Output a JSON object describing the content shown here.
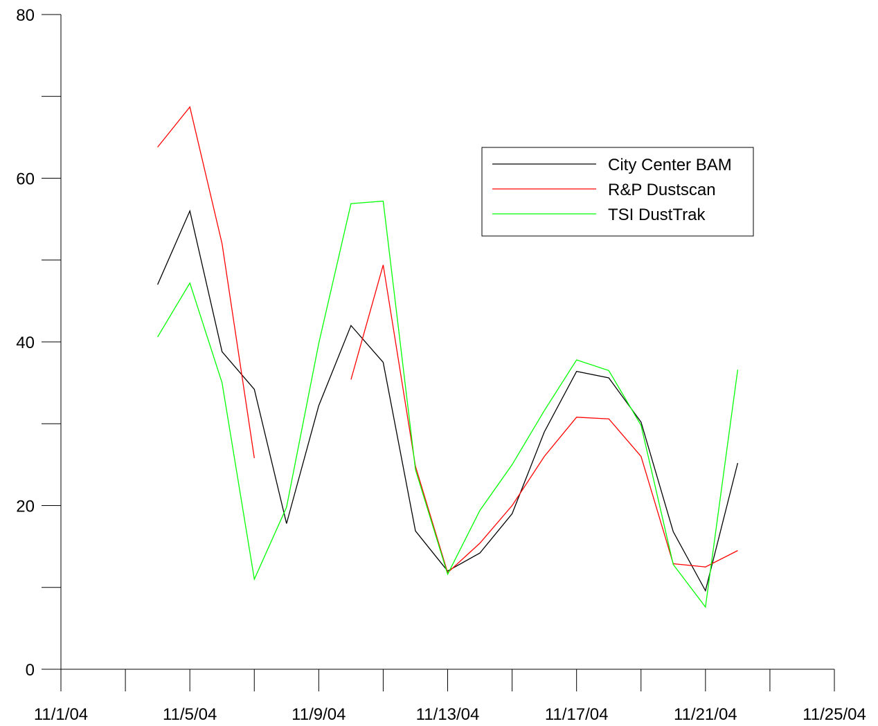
{
  "chart_data": {
    "type": "line",
    "title": "",
    "xlabel": "",
    "ylabel": "",
    "x_ticks": [
      "11/1/04",
      "11/5/04",
      "11/9/04",
      "11/13/04",
      "11/17/04",
      "11/21/04",
      "11/25/04"
    ],
    "x_range": [
      "2004-11-01",
      "2004-11-25"
    ],
    "y_ticks": [
      0,
      20,
      40,
      60,
      80
    ],
    "ylim": [
      0,
      80
    ],
    "grid": false,
    "legend_position": "upper-right",
    "series": [
      {
        "name": "City Center BAM",
        "color": "#000000",
        "points": [
          [
            "2004-11-04",
            47.0
          ],
          [
            "2004-11-05",
            56.0
          ],
          [
            "2004-11-06",
            38.8
          ],
          [
            "2004-11-07",
            34.2
          ],
          [
            "2004-11-08",
            17.8
          ],
          [
            "2004-11-09",
            32.2
          ],
          [
            "2004-11-10",
            42.0
          ],
          [
            "2004-11-11",
            37.5
          ],
          [
            "2004-11-12",
            16.9
          ],
          [
            "2004-11-13",
            12.0
          ],
          [
            "2004-11-14",
            14.2
          ],
          [
            "2004-11-15",
            19.0
          ],
          [
            "2004-11-16",
            29.0
          ],
          [
            "2004-11-17",
            36.4
          ],
          [
            "2004-11-18",
            35.6
          ],
          [
            "2004-11-19",
            30.2
          ],
          [
            "2004-11-20",
            16.8
          ],
          [
            "2004-11-21",
            9.6
          ],
          [
            "2004-11-22",
            25.2
          ]
        ]
      },
      {
        "name": "R&P Dustscan",
        "color": "#ff0000",
        "segments": [
          [
            [
              "2004-11-04",
              63.8
            ],
            [
              "2004-11-05",
              68.7
            ],
            [
              "2004-11-06",
              52.0
            ],
            [
              "2004-11-07",
              25.8
            ]
          ],
          [
            [
              "2004-11-10",
              35.4
            ],
            [
              "2004-11-11",
              49.4
            ],
            [
              "2004-11-12",
              24.8
            ],
            [
              "2004-11-13",
              11.8
            ],
            [
              "2004-11-14",
              15.4
            ],
            [
              "2004-11-15",
              20.0
            ],
            [
              "2004-11-16",
              26.0
            ],
            [
              "2004-11-17",
              30.8
            ],
            [
              "2004-11-18",
              30.6
            ],
            [
              "2004-11-19",
              26.0
            ],
            [
              "2004-11-20",
              12.9
            ],
            [
              "2004-11-21",
              12.5
            ],
            [
              "2004-11-22",
              14.5
            ]
          ]
        ]
      },
      {
        "name": "TSI DustTrak",
        "color": "#00ff00",
        "points": [
          [
            "2004-11-04",
            40.6
          ],
          [
            "2004-11-05",
            47.2
          ],
          [
            "2004-11-06",
            35.0
          ],
          [
            "2004-11-07",
            11.0
          ],
          [
            "2004-11-08",
            19.8
          ],
          [
            "2004-11-09",
            39.8
          ],
          [
            "2004-11-10",
            56.9
          ],
          [
            "2004-11-11",
            57.2
          ],
          [
            "2004-11-12",
            24.4
          ],
          [
            "2004-11-13",
            11.6
          ],
          [
            "2004-11-14",
            19.4
          ],
          [
            "2004-11-15",
            25.0
          ],
          [
            "2004-11-16",
            31.6
          ],
          [
            "2004-11-17",
            37.8
          ],
          [
            "2004-11-18",
            36.5
          ],
          [
            "2004-11-19",
            29.8
          ],
          [
            "2004-11-20",
            12.8
          ],
          [
            "2004-11-21",
            7.6
          ],
          [
            "2004-11-22",
            36.6
          ]
        ]
      }
    ]
  }
}
